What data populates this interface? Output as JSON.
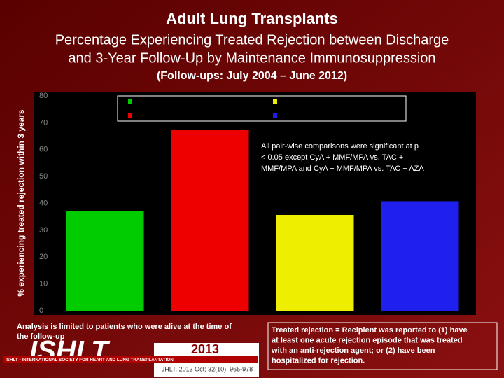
{
  "chart_data": {
    "type": "bar",
    "title": "Adult Lung Transplants",
    "subtitle": [
      "Percentage Experiencing Treated Rejection between Discharge",
      "and 3-Year Follow-Up by Maintenance Immunosuppression"
    ],
    "period": "(Follow-ups: July 2004 – June 2012)",
    "ylabel": "% experiencing treated rejection within 3 years",
    "categories": [
      null,
      null,
      null,
      null
    ],
    "values": [
      37.2,
      67.3,
      35.7,
      40.8
    ],
    "colors": [
      "#00cc00",
      "#ee0000",
      "#eeee00",
      "#2020ee"
    ],
    "ylim": [
      0,
      80
    ],
    "yticks": [
      0,
      10,
      20,
      30,
      40,
      50,
      60,
      70,
      80
    ],
    "annotation": [
      "All pair-wise comparisons were significant at p",
      "< 0.05 except CyA + MMF/MPA vs. TAC +",
      "MMF/MPA and CyA + MMF/MPA vs. TAC + AZA"
    ]
  },
  "footer": {
    "note": [
      "Analysis is limited to patients who were alive at the time of",
      "the follow-up"
    ],
    "logo": "ISHLT",
    "society": "ISHLT • INTERNATIONAL SOCIETY FOR HEART AND LUNG TRANSPLANTATION",
    "year": "2013",
    "citation": "JHLT. 2013 Oct; 32(10): 965-978",
    "definition": [
      "Treated rejection = Recipient was reported to (1) have",
      "at least one acute rejection episode that was treated",
      "with an  anti-rejection agent; or (2) have been",
      "hospitalized for rejection."
    ]
  }
}
